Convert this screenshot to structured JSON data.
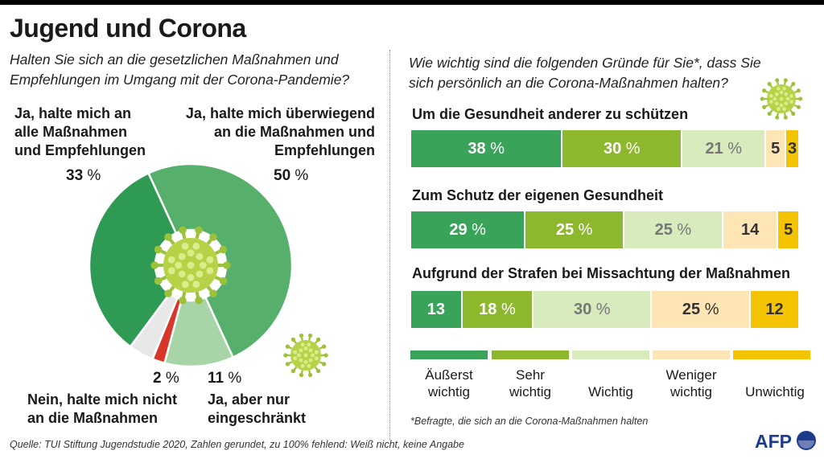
{
  "title": "Jugend und Corona",
  "left": {
    "question_line1": "Halten Sie sich an die gesetzlichen Maßnahmen und",
    "question_line2": "Empfehlungen im Umgang mit der Corona-Pandemie?"
  },
  "right": {
    "question_line1": "Wie wichtig sind die folgenden Gründe für Sie*, dass Sie",
    "question_line2": "sich persönlich an die Corona-Maßnahmen halten?"
  },
  "footnote": "*Befragte, die sich an die Corona-Maßnahmen halten",
  "source": "Quelle: TUI Stiftung Jugendstudie 2020, Zahlen gerundet, zu 100% fehlend: Weiß nicht, keine Angabe",
  "logo": "AFP",
  "chart_data": [
    {
      "type": "pie",
      "title": "Halten Sie sich an die gesetzlichen Maßnahmen und Empfehlungen im Umgang mit der Corona-Pandemie?",
      "slices": [
        {
          "label": "Ja, halte mich überwiegend an die Maßnahmen und Empfehlungen",
          "lines": [
            "Ja, halte mich überwiegend",
            "an die Maßnahmen und",
            "Empfehlungen"
          ],
          "value": 50,
          "num": "50",
          "unit": "%",
          "color": "#56b06b"
        },
        {
          "label": "Ja, aber nur eingeschränkt",
          "lines": [
            "Ja, aber nur",
            "eingeschränkt"
          ],
          "value": 11,
          "num": "11",
          "unit": "%",
          "color": "#a8d5a8"
        },
        {
          "label": "Nein, halte mich nicht an die Maßnahmen",
          "lines": [
            "Nein, halte mich nicht",
            "an die Maßnahmen"
          ],
          "value": 2,
          "num": "2",
          "unit": "%",
          "color": "#d9362b"
        },
        {
          "label": "Weiß nicht, keine Angabe",
          "value": 4,
          "color": "#e8e8e8"
        },
        {
          "label": "Ja, halte mich an alle Maßnahmen und Empfehlungen",
          "lines": [
            "Ja, halte mich an",
            "alle Maßnahmen",
            "und Empfehlungen"
          ],
          "value": 33,
          "num": "33",
          "unit": "%",
          "color": "#2e9a54"
        }
      ]
    },
    {
      "type": "bar",
      "orientation": "horizontal-stacked",
      "title": "Wie wichtig sind die folgenden Gründe für Sie*, dass Sie sich persönlich an die Corona-Maßnahmen halten?",
      "series": [
        {
          "name": "Äußerst wichtig",
          "lines": [
            "Äußerst",
            "wichtig"
          ],
          "color": "#3aa35a",
          "text_color": "#ffffff"
        },
        {
          "name": "Sehr wichtig",
          "lines": [
            "Sehr",
            "wichtig"
          ],
          "color": "#8db82e",
          "text_color": "#ffffff"
        },
        {
          "name": "Wichtig",
          "lines": [
            "Wichtig"
          ],
          "color": "#d7ebbd",
          "text_color": "#777777"
        },
        {
          "name": "Weniger wichtig",
          "lines": [
            "Weniger",
            "wichtig"
          ],
          "color": "#fde5b5",
          "text_color": "#333333"
        },
        {
          "name": "Unwichtig",
          "lines": [
            "Unwichtig"
          ],
          "color": "#f5c400",
          "text_color": "#333333"
        }
      ],
      "categories": [
        {
          "label": "Um die Gesundheit anderer zu schützen",
          "values": [
            38,
            30,
            21,
            5,
            3
          ],
          "labels": [
            [
              "38",
              "%"
            ],
            [
              "30",
              "%"
            ],
            [
              "21",
              "%"
            ],
            [
              "5",
              ""
            ],
            [
              "3",
              ""
            ]
          ]
        },
        {
          "label": "Zum Schutz der eigenen Gesundheit",
          "values": [
            29,
            25,
            25,
            14,
            5
          ],
          "labels": [
            [
              "29",
              "%"
            ],
            [
              "25",
              "%"
            ],
            [
              "25",
              "%"
            ],
            [
              "14",
              ""
            ],
            [
              "5",
              ""
            ]
          ]
        },
        {
          "label": "Aufgrund der Strafen bei Missachtung der Maßnahmen",
          "values": [
            13,
            18,
            30,
            25,
            12
          ],
          "labels": [
            [
              "13",
              ""
            ],
            [
              "18",
              "%"
            ],
            [
              "30",
              "%"
            ],
            [
              "25",
              "%"
            ],
            [
              "12",
              ""
            ]
          ]
        }
      ]
    }
  ]
}
